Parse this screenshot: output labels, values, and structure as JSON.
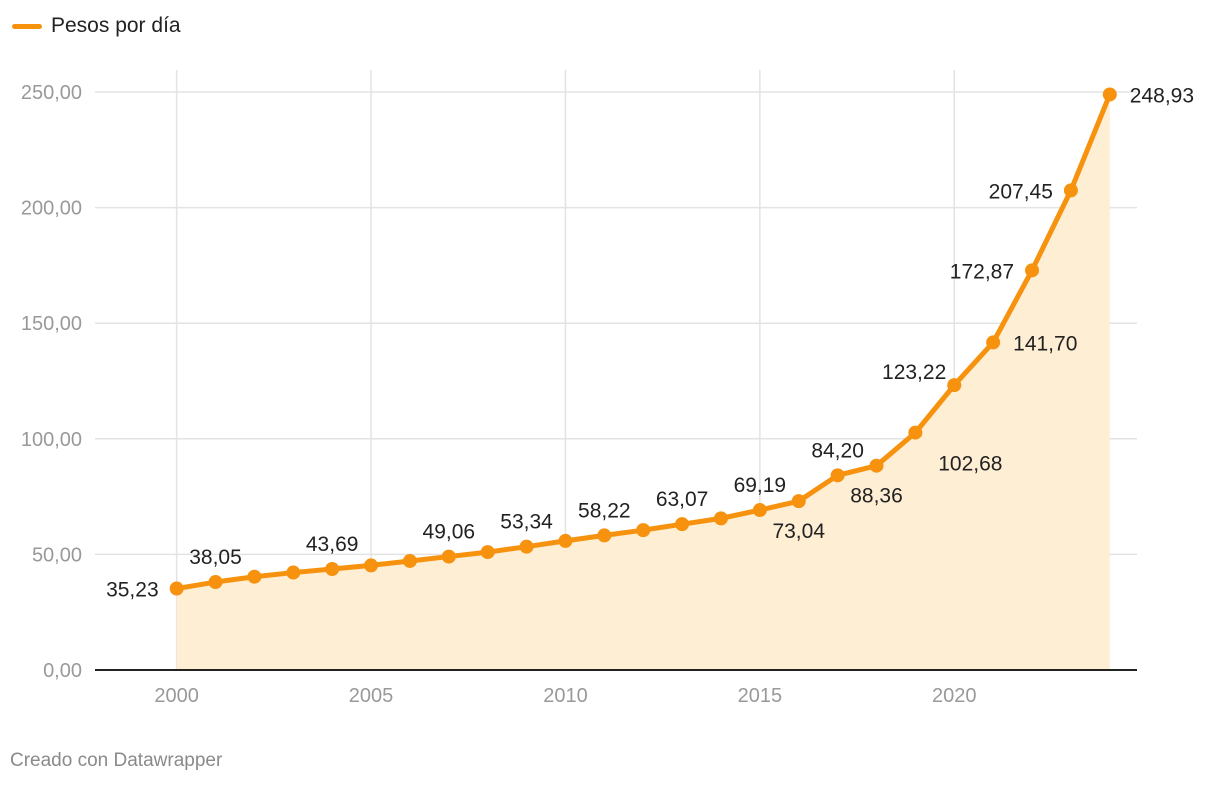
{
  "legend": {
    "label": "Pesos por día"
  },
  "footer": {
    "credit": "Creado con Datawrapper"
  },
  "colors": {
    "line": "#f7920e",
    "area": "#fdeed4",
    "grid": "#e3e3e3",
    "axis": "#222222",
    "tick_text": "#999999",
    "label_text": "#222222"
  },
  "chart_data": {
    "type": "area",
    "title": "",
    "xlabel": "",
    "ylabel": "",
    "xlim": [
      1997.9,
      2024.7
    ],
    "ylim": [
      0,
      250
    ],
    "yticks": [
      0,
      50,
      100,
      150,
      200,
      250
    ],
    "ytick_labels": [
      "0,00",
      "50,00",
      "100,00",
      "150,00",
      "200,00",
      "250,00"
    ],
    "xticks": [
      2000,
      2005,
      2010,
      2015,
      2020
    ],
    "xtick_labels": [
      "2000",
      "2005",
      "2010",
      "2015",
      "2020"
    ],
    "grid": true,
    "legend_position": "top-left",
    "series": [
      {
        "name": "Pesos por día",
        "x": [
          2000,
          2001,
          2002,
          2003,
          2004,
          2005,
          2006,
          2007,
          2008,
          2009,
          2010,
          2011,
          2012,
          2013,
          2014,
          2015,
          2016,
          2017,
          2018,
          2019,
          2020,
          2021,
          2022,
          2023,
          2024
        ],
        "y": [
          35.23,
          38.05,
          40.35,
          42.15,
          43.69,
          45.24,
          47.16,
          49.06,
          51.0,
          53.34,
          55.84,
          58.22,
          60.5,
          63.07,
          65.58,
          69.19,
          73.04,
          84.2,
          88.36,
          102.68,
          123.22,
          141.7,
          172.87,
          207.45,
          248.93
        ]
      }
    ],
    "data_labels": [
      {
        "x": 2000,
        "text": "35,23",
        "pos": "left"
      },
      {
        "x": 2001,
        "text": "38,05",
        "pos": "above"
      },
      {
        "x": 2004,
        "text": "43,69",
        "pos": "above"
      },
      {
        "x": 2007,
        "text": "49,06",
        "pos": "above"
      },
      {
        "x": 2009,
        "text": "53,34",
        "pos": "above"
      },
      {
        "x": 2011,
        "text": "58,22",
        "pos": "above"
      },
      {
        "x": 2013,
        "text": "63,07",
        "pos": "above"
      },
      {
        "x": 2015,
        "text": "69,19",
        "pos": "above"
      },
      {
        "x": 2016,
        "text": "73,04",
        "pos": "below"
      },
      {
        "x": 2017,
        "text": "84,20",
        "pos": "above"
      },
      {
        "x": 2018,
        "text": "88,36",
        "pos": "below"
      },
      {
        "x": 2019,
        "text": "102,68",
        "pos": "below-right"
      },
      {
        "x": 2020,
        "text": "123,22",
        "pos": "left-up"
      },
      {
        "x": 2021,
        "text": "141,70",
        "pos": "right"
      },
      {
        "x": 2022,
        "text": "172,87",
        "pos": "left"
      },
      {
        "x": 2023,
        "text": "207,45",
        "pos": "left"
      },
      {
        "x": 2024,
        "text": "248,93",
        "pos": "right"
      }
    ]
  }
}
